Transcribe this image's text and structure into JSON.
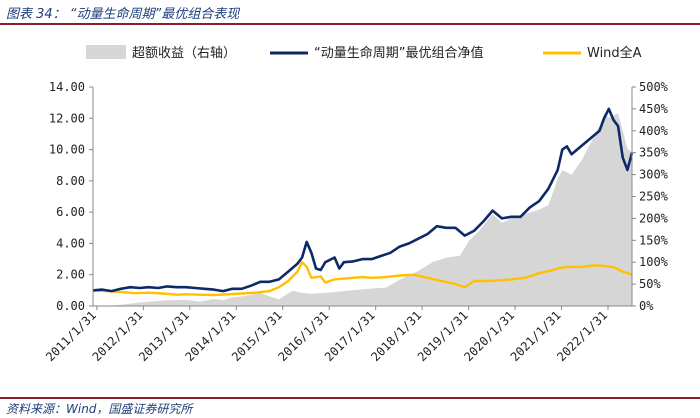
{
  "header": {
    "title": "图表 34：  “动量生命周期”最优组合表现"
  },
  "footer": {
    "source": "资料来源：Wind，国盛证券研究所"
  },
  "colors": {
    "area": "#d6d6d6",
    "portfolio": "#0e2a66",
    "index": "#ffc000",
    "rule": "#8b1e2b"
  },
  "chart_data": {
    "type": "line",
    "title": "",
    "xlabel": "",
    "ylabel": "",
    "legend_position": "top",
    "grid": false,
    "x_tick_labels": [
      "2011/1/31",
      "2012/1/31",
      "2013/1/31",
      "2014/1/31",
      "2015/1/31",
      "2016/1/31",
      "2017/1/31",
      "2018/1/31",
      "2019/1/31",
      "2020/1/31",
      "2021/1/31",
      "2022/1/31"
    ],
    "y_left": {
      "ticks": [
        "0.00",
        "2.00",
        "4.00",
        "6.00",
        "8.00",
        "10.00",
        "12.00",
        "14.00"
      ],
      "range": [
        0,
        14
      ]
    },
    "y_right": {
      "ticks": [
        "0%",
        "50%",
        "100%",
        "150%",
        "200%",
        "250%",
        "300%",
        "350%",
        "400%",
        "450%",
        "500%"
      ],
      "range": [
        0,
        5
      ]
    },
    "x_range": [
      2011.0,
      2022.6
    ],
    "series": [
      {
        "name": "超额收益（右轴）",
        "kind": "area",
        "axis": "right",
        "points": [
          [
            2011.0,
            0.0
          ],
          [
            2011.3,
            0.0
          ],
          [
            2011.6,
            0.03
          ],
          [
            2012.0,
            0.08
          ],
          [
            2012.3,
            0.11
          ],
          [
            2012.6,
            0.13
          ],
          [
            2013.0,
            0.14
          ],
          [
            2013.3,
            0.1
          ],
          [
            2013.6,
            0.16
          ],
          [
            2013.8,
            0.13
          ],
          [
            2014.0,
            0.2
          ],
          [
            2014.3,
            0.23
          ],
          [
            2014.6,
            0.3
          ],
          [
            2014.8,
            0.22
          ],
          [
            2015.0,
            0.15
          ],
          [
            2015.3,
            0.35
          ],
          [
            2015.5,
            0.3
          ],
          [
            2015.7,
            0.28
          ],
          [
            2016.0,
            0.3
          ],
          [
            2016.3,
            0.33
          ],
          [
            2016.6,
            0.36
          ],
          [
            2017.0,
            0.4
          ],
          [
            2017.3,
            0.42
          ],
          [
            2017.6,
            0.6
          ],
          [
            2018.0,
            0.8
          ],
          [
            2018.3,
            1.0
          ],
          [
            2018.6,
            1.1
          ],
          [
            2018.9,
            1.15
          ],
          [
            2019.1,
            1.5
          ],
          [
            2019.3,
            1.7
          ],
          [
            2019.6,
            2.1
          ],
          [
            2019.8,
            1.9
          ],
          [
            2020.0,
            2.0
          ],
          [
            2020.3,
            2.1
          ],
          [
            2020.6,
            2.2
          ],
          [
            2020.8,
            2.3
          ],
          [
            2021.0,
            2.9
          ],
          [
            2021.1,
            3.1
          ],
          [
            2021.3,
            3.0
          ],
          [
            2021.5,
            3.3
          ],
          [
            2021.7,
            3.7
          ],
          [
            2021.9,
            4.1
          ],
          [
            2022.0,
            4.4
          ],
          [
            2022.1,
            4.3
          ],
          [
            2022.3,
            4.4
          ],
          [
            2022.4,
            4.0
          ],
          [
            2022.5,
            3.6
          ],
          [
            2022.6,
            3.5
          ]
        ]
      },
      {
        "name": "“动量生命周期”最优组合净值",
        "kind": "line",
        "axis": "left",
        "points": [
          [
            2011.0,
            1.0
          ],
          [
            2011.2,
            1.05
          ],
          [
            2011.4,
            0.95
          ],
          [
            2011.6,
            1.1
          ],
          [
            2011.8,
            1.2
          ],
          [
            2012.0,
            1.15
          ],
          [
            2012.2,
            1.2
          ],
          [
            2012.4,
            1.15
          ],
          [
            2012.6,
            1.25
          ],
          [
            2012.8,
            1.2
          ],
          [
            2013.0,
            1.2
          ],
          [
            2013.2,
            1.15
          ],
          [
            2013.4,
            1.1
          ],
          [
            2013.6,
            1.05
          ],
          [
            2013.8,
            0.95
          ],
          [
            2014.0,
            1.1
          ],
          [
            2014.2,
            1.1
          ],
          [
            2014.4,
            1.3
          ],
          [
            2014.6,
            1.55
          ],
          [
            2014.8,
            1.55
          ],
          [
            2015.0,
            1.7
          ],
          [
            2015.2,
            2.2
          ],
          [
            2015.4,
            2.7
          ],
          [
            2015.5,
            3.1
          ],
          [
            2015.6,
            4.1
          ],
          [
            2015.7,
            3.4
          ],
          [
            2015.8,
            2.4
          ],
          [
            2015.9,
            2.3
          ],
          [
            2016.0,
            2.8
          ],
          [
            2016.2,
            3.1
          ],
          [
            2016.3,
            2.4
          ],
          [
            2016.4,
            2.8
          ],
          [
            2016.6,
            2.85
          ],
          [
            2016.8,
            3.0
          ],
          [
            2017.0,
            3.0
          ],
          [
            2017.2,
            3.2
          ],
          [
            2017.4,
            3.4
          ],
          [
            2017.6,
            3.8
          ],
          [
            2017.8,
            4.0
          ],
          [
            2018.0,
            4.3
          ],
          [
            2018.2,
            4.6
          ],
          [
            2018.4,
            5.1
          ],
          [
            2018.6,
            5.0
          ],
          [
            2018.8,
            5.0
          ],
          [
            2019.0,
            4.5
          ],
          [
            2019.2,
            4.8
          ],
          [
            2019.4,
            5.4
          ],
          [
            2019.6,
            6.1
          ],
          [
            2019.8,
            5.6
          ],
          [
            2020.0,
            5.7
          ],
          [
            2020.2,
            5.7
          ],
          [
            2020.4,
            6.3
          ],
          [
            2020.6,
            6.7
          ],
          [
            2020.8,
            7.5
          ],
          [
            2021.0,
            8.7
          ],
          [
            2021.1,
            10.0
          ],
          [
            2021.2,
            10.2
          ],
          [
            2021.3,
            9.7
          ],
          [
            2021.5,
            10.2
          ],
          [
            2021.7,
            10.7
          ],
          [
            2021.9,
            11.2
          ],
          [
            2022.0,
            12.0
          ],
          [
            2022.1,
            12.6
          ],
          [
            2022.2,
            11.9
          ],
          [
            2022.3,
            11.5
          ],
          [
            2022.4,
            9.5
          ],
          [
            2022.5,
            8.7
          ],
          [
            2022.6,
            9.8
          ]
        ]
      },
      {
        "name": "Wind全A",
        "kind": "line",
        "axis": "left",
        "points": [
          [
            2011.0,
            1.0
          ],
          [
            2011.3,
            0.95
          ],
          [
            2011.6,
            0.9
          ],
          [
            2011.9,
            0.82
          ],
          [
            2012.2,
            0.85
          ],
          [
            2012.5,
            0.8
          ],
          [
            2012.8,
            0.72
          ],
          [
            2013.0,
            0.75
          ],
          [
            2013.3,
            0.72
          ],
          [
            2013.6,
            0.7
          ],
          [
            2013.9,
            0.75
          ],
          [
            2014.2,
            0.8
          ],
          [
            2014.5,
            0.85
          ],
          [
            2014.8,
            0.95
          ],
          [
            2015.0,
            1.2
          ],
          [
            2015.2,
            1.6
          ],
          [
            2015.4,
            2.2
          ],
          [
            2015.5,
            2.8
          ],
          [
            2015.6,
            2.5
          ],
          [
            2015.7,
            1.8
          ],
          [
            2015.9,
            1.9
          ],
          [
            2016.0,
            1.5
          ],
          [
            2016.2,
            1.7
          ],
          [
            2016.4,
            1.75
          ],
          [
            2016.6,
            1.8
          ],
          [
            2016.8,
            1.85
          ],
          [
            2017.0,
            1.8
          ],
          [
            2017.3,
            1.85
          ],
          [
            2017.6,
            1.95
          ],
          [
            2017.9,
            2.0
          ],
          [
            2018.2,
            1.8
          ],
          [
            2018.5,
            1.6
          ],
          [
            2018.8,
            1.4
          ],
          [
            2019.0,
            1.2
          ],
          [
            2019.2,
            1.6
          ],
          [
            2019.5,
            1.6
          ],
          [
            2019.8,
            1.65
          ],
          [
            2020.0,
            1.7
          ],
          [
            2020.3,
            1.8
          ],
          [
            2020.6,
            2.1
          ],
          [
            2020.9,
            2.3
          ],
          [
            2021.0,
            2.4
          ],
          [
            2021.2,
            2.5
          ],
          [
            2021.5,
            2.5
          ],
          [
            2021.8,
            2.6
          ],
          [
            2022.0,
            2.55
          ],
          [
            2022.2,
            2.5
          ],
          [
            2022.4,
            2.2
          ],
          [
            2022.6,
            2.0
          ]
        ]
      }
    ]
  }
}
